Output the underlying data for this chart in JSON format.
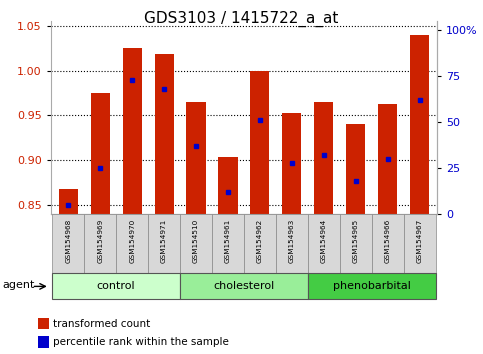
{
  "title": "GDS3103 / 1415722_a_at",
  "samples": [
    "GSM154968",
    "GSM154969",
    "GSM154970",
    "GSM154971",
    "GSM154510",
    "GSM154961",
    "GSM154962",
    "GSM154963",
    "GSM154964",
    "GSM154965",
    "GSM154966",
    "GSM154967"
  ],
  "bar_values": [
    0.868,
    0.975,
    1.025,
    1.018,
    0.965,
    0.904,
    0.999,
    0.953,
    0.965,
    0.94,
    0.963,
    1.04
  ],
  "percentile_values": [
    5,
    25,
    73,
    68,
    37,
    12,
    51,
    28,
    32,
    18,
    30,
    62
  ],
  "bar_color": "#cc2200",
  "dot_color": "#0000cc",
  "ylim_left": [
    0.84,
    1.055
  ],
  "ylim_right": [
    0,
    105
  ],
  "yticks_left": [
    0.85,
    0.9,
    0.95,
    1.0,
    1.05
  ],
  "yticks_right": [
    0,
    25,
    50,
    75,
    100
  ],
  "ytick_labels_right": [
    "0",
    "25",
    "50",
    "75",
    "100%"
  ],
  "groups": [
    {
      "label": "control",
      "indices": [
        0,
        1,
        2,
        3
      ],
      "color": "#ccffcc"
    },
    {
      "label": "cholesterol",
      "indices": [
        4,
        5,
        6,
        7
      ],
      "color": "#99ee99"
    },
    {
      "label": "phenobarbital",
      "indices": [
        8,
        9,
        10,
        11
      ],
      "color": "#44cc44"
    }
  ],
  "agent_label": "agent",
  "legend_items": [
    {
      "label": "transformed count",
      "color": "#cc2200"
    },
    {
      "label": "percentile rank within the sample",
      "color": "#0000cc"
    }
  ],
  "background_color": "#ffffff",
  "bar_bottom": 0.84,
  "title_fontsize": 11
}
